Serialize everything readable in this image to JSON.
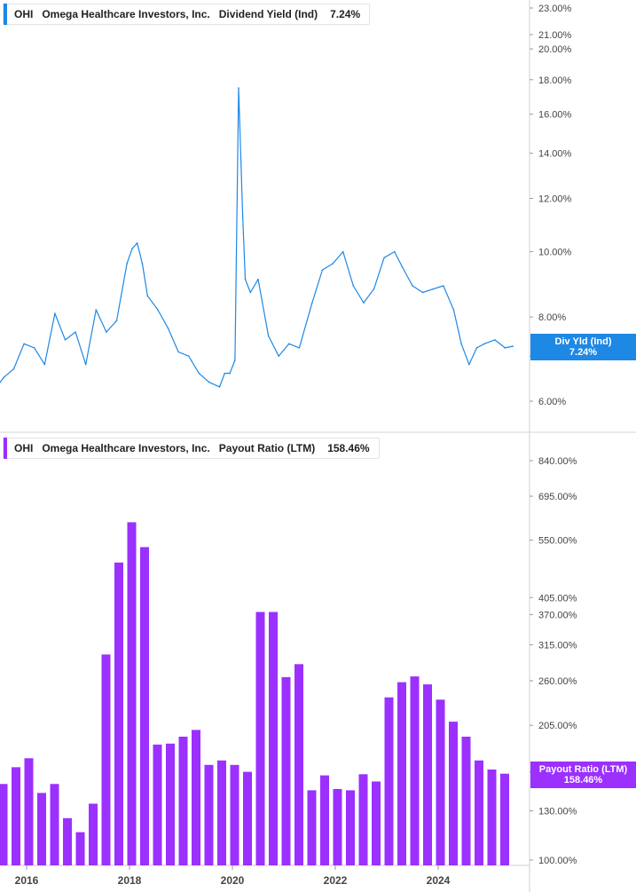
{
  "top_panel": {
    "ticker": "OHI",
    "company": "Omega Healthcare Investors, Inc.",
    "metric": "Dividend Yield (Ind)",
    "value": "7.24%",
    "tag_label": "Div Yld (Ind)",
    "tag_value": "7.24%",
    "color": "#1e88e5"
  },
  "bottom_panel": {
    "ticker": "OHI",
    "company": "Omega Healthcare Investors, Inc.",
    "metric": "Payout Ratio (LTM)",
    "value": "158.46%",
    "tag_label": "Payout Ratio (LTM)",
    "tag_value": "158.46%",
    "color": "#9b30ff"
  },
  "chart_data": [
    {
      "type": "line",
      "name": "Dividend Yield (Ind)",
      "scale": "log",
      "ylim": [
        6.0,
        23.0
      ],
      "y_ticks": [
        "6.00%",
        "7.00%",
        "8.00%",
        "10.00%",
        "12.00%",
        "14.00%",
        "16.00%",
        "18.00%",
        "20.00%",
        "21.00%",
        "23.00%"
      ],
      "x_ticks": [
        "2016",
        "2018",
        "2020",
        "2022",
        "2024"
      ],
      "x": [
        2015.35,
        2015.55,
        2015.75,
        2015.95,
        2016.15,
        2016.35,
        2016.55,
        2016.75,
        2016.95,
        2017.15,
        2017.35,
        2017.55,
        2017.75,
        2017.95,
        2018.05,
        2018.15,
        2018.25,
        2018.35,
        2018.55,
        2018.75,
        2018.95,
        2019.15,
        2019.35,
        2019.55,
        2019.75,
        2019.85,
        2019.95,
        2020.05,
        2020.12,
        2020.2,
        2020.25,
        2020.35,
        2020.5,
        2020.7,
        2020.9,
        2021.1,
        2021.3,
        2021.55,
        2021.75,
        2021.95,
        2022.15,
        2022.35,
        2022.55,
        2022.75,
        2022.95,
        2023.15,
        2023.3,
        2023.5,
        2023.7,
        2023.9,
        2024.1,
        2024.3,
        2024.45,
        2024.6,
        2024.75,
        2024.9,
        2025.1,
        2025.3,
        2025.45
      ],
      "y": [
        6.2,
        6.5,
        6.7,
        7.3,
        7.2,
        6.8,
        8.1,
        7.4,
        7.6,
        6.8,
        8.2,
        7.6,
        7.9,
        9.6,
        10.1,
        10.3,
        9.6,
        8.6,
        8.2,
        7.7,
        7.1,
        7.0,
        6.6,
        6.4,
        6.3,
        6.6,
        6.6,
        6.9,
        17.5,
        11.3,
        9.1,
        8.7,
        9.1,
        7.5,
        7.0,
        7.3,
        7.2,
        8.4,
        9.4,
        9.6,
        10.0,
        8.9,
        8.4,
        8.8,
        9.8,
        10.0,
        9.5,
        8.9,
        8.7,
        8.8,
        8.9,
        8.2,
        7.3,
        6.8,
        7.2,
        7.3,
        7.4,
        7.2,
        7.24
      ]
    },
    {
      "type": "bar",
      "name": "Payout Ratio (LTM)",
      "scale": "log",
      "ylim": [
        100,
        840
      ],
      "y_ticks": [
        "100.00%",
        "130.00%",
        "160.00%",
        "205.00%",
        "260.00%",
        "315.00%",
        "370.00%",
        "405.00%",
        "550.00%",
        "695.00%",
        "840.00%"
      ],
      "x_ticks": [
        "2016",
        "2018",
        "2020",
        "2022",
        "2024"
      ],
      "x": [
        2015.25,
        2015.5,
        2015.75,
        2016.0,
        2016.25,
        2016.5,
        2016.75,
        2017.0,
        2017.25,
        2017.5,
        2017.75,
        2018.0,
        2018.25,
        2018.5,
        2018.75,
        2019.0,
        2019.25,
        2019.5,
        2019.75,
        2020.0,
        2020.25,
        2020.5,
        2020.75,
        2021.0,
        2021.25,
        2021.5,
        2021.75,
        2022.0,
        2022.25,
        2022.5,
        2022.75,
        2023.0,
        2023.25,
        2023.5,
        2023.75,
        2024.0,
        2024.25,
        2024.5,
        2024.75,
        2025.0,
        2025.25
      ],
      "values": [
        144,
        150,
        164,
        172,
        143,
        150,
        125,
        116,
        135,
        299,
        488,
        605,
        530,
        185,
        186,
        193,
        200,
        166,
        170,
        166,
        160,
        375,
        375,
        265,
        284,
        145,
        157,
        146,
        145,
        158,
        152,
        238,
        258,
        266,
        255,
        235,
        209,
        193,
        170,
        162,
        158.46
      ]
    }
  ]
}
